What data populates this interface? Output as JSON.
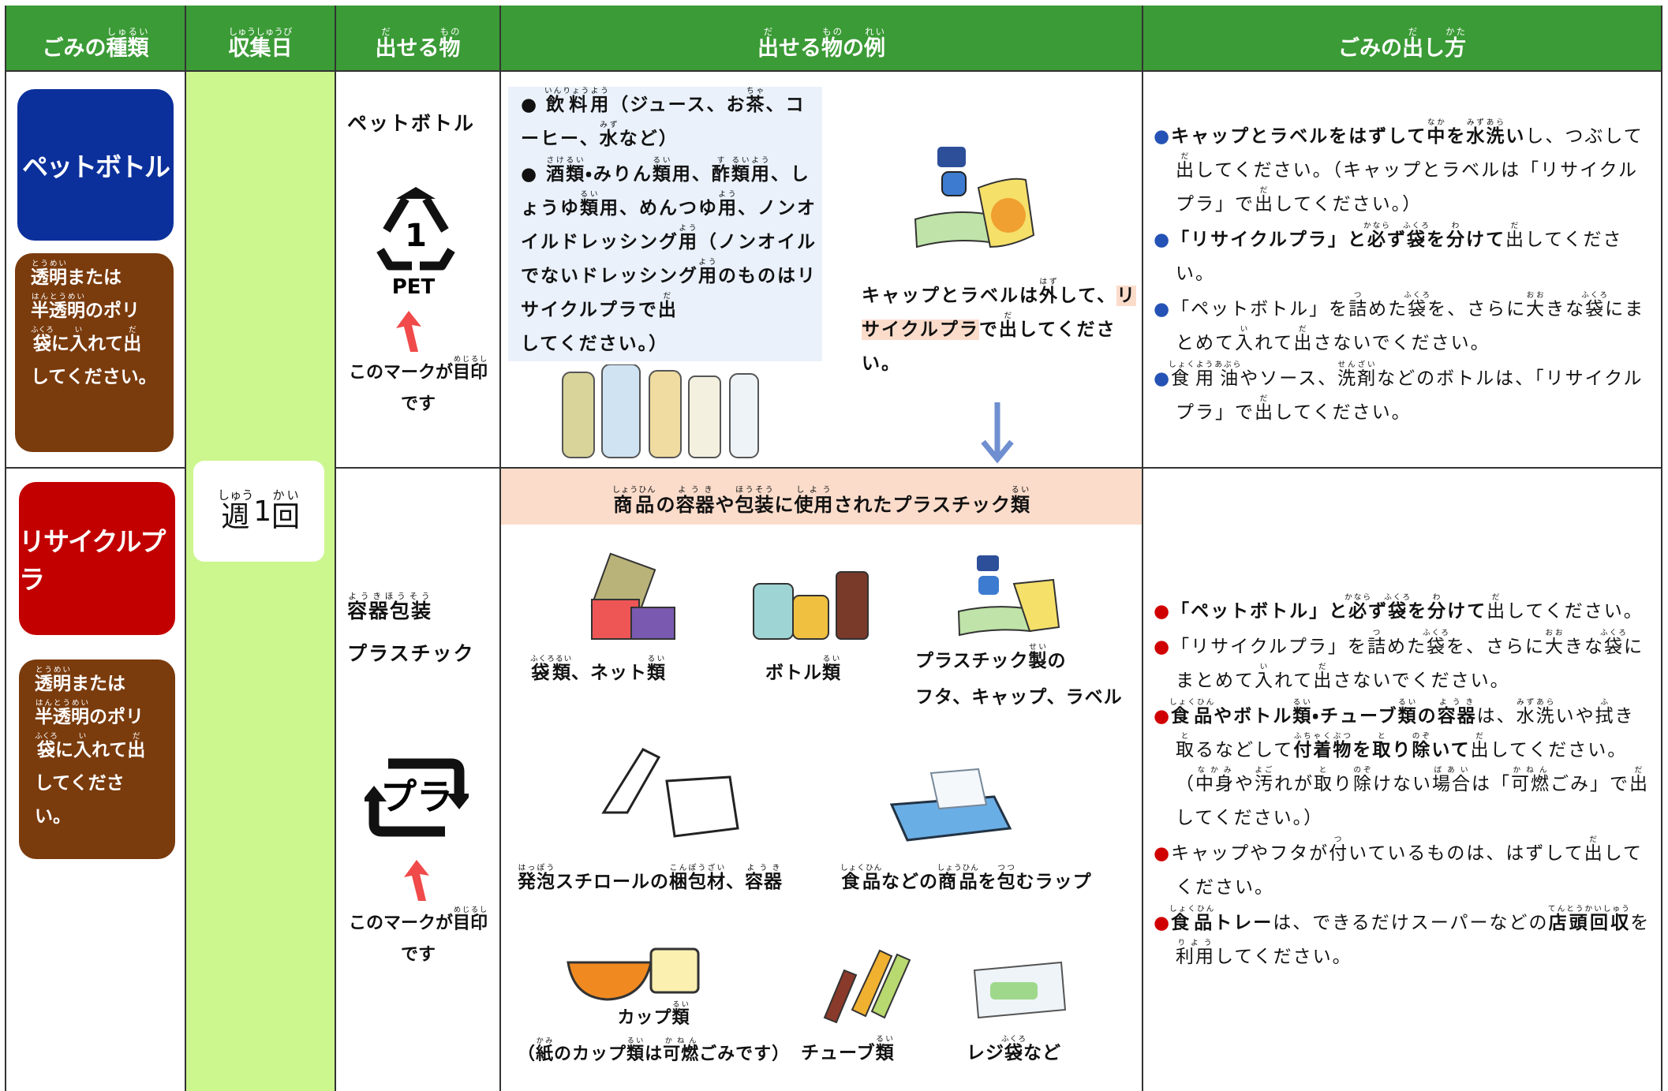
{
  "header": {
    "columns": [
      [
        "ごみの",
        {
          "t": "種類",
          "r": "しゅるい"
        }
      ],
      [
        {
          "t": "収集日",
          "r": "しゅうしゅうび"
        }
      ],
      [
        {
          "t": "出",
          "r": "だ"
        },
        "せる",
        {
          "t": "物",
          "r": "もの"
        }
      ],
      [
        {
          "t": "出",
          "r": "だ"
        },
        "せる",
        {
          "t": "物",
          "r": "もの"
        },
        "の",
        {
          "t": "例",
          "r": "れい"
        }
      ],
      [
        "ごみの",
        {
          "t": "出",
          "r": "だ"
        },
        "し",
        {
          "t": "方",
          "r": "かた"
        }
      ]
    ]
  },
  "collection_day": [
    {
      "t": "週",
      "r": "しゅう"
    },
    "1",
    {
      "t": "回",
      "r": "かい"
    }
  ],
  "rows": [
    {
      "category": "ペットボトル",
      "bag_note": [
        {
          "t": "透明",
          "r": "とうめい"
        },
        "または",
        {
          "t": "半透明",
          "r": "はんとうめい"
        },
        "のポリ",
        {
          "t": "袋",
          "r": "ふくろ"
        },
        "に",
        {
          "t": "入",
          "r": "い"
        },
        "れて",
        {
          "t": "出",
          "r": "だ"
        },
        "してください。"
      ],
      "item": [
        [
          "ペットボトル"
        ]
      ],
      "mark_number": "1",
      "mark": "PET",
      "mark_note": [
        "このマークが",
        {
          "t": "目印",
          "r": "めじるし"
        },
        "です"
      ],
      "examples": [
        [
          "● ",
          {
            "t": "飲料",
            "r": "いんりょう"
          },
          {
            "t": "用",
            "r": "よう"
          },
          "（ジュース、お",
          {
            "t": "茶",
            "r": "ちゃ"
          },
          "、コーヒー、",
          {
            "t": "水",
            "r": "みず"
          },
          "など）"
        ],
        [
          "● ",
          {
            "t": "酒類",
            "r": "さけるい"
          },
          "・みりん",
          {
            "t": "類",
            "r": "るい"
          },
          "用、",
          {
            "t": "酢",
            "r": "す"
          },
          {
            "t": "類",
            "r": "るい"
          },
          {
            "t": "用",
            "r": "よう"
          },
          "、しょうゆ",
          {
            "t": "類",
            "r": "るい"
          },
          "用、めんつゆ",
          {
            "t": "用",
            "r": "よう"
          },
          "、ノンオイルドレッシング",
          {
            "t": "用",
            "r": "よう"
          },
          "（ノンオイルでないドレッシング",
          {
            "t": "用",
            "r": "よう"
          },
          "のものはリサイクルプラで",
          {
            "t": "出",
            "r": "だ"
          },
          "してください。）"
        ]
      ],
      "caption": [
        "キャップとラベルは",
        {
          "t": "外",
          "r": "はず"
        },
        "して、",
        {
          "t": "リサイクルプラ",
          "h": true
        },
        "で",
        {
          "t": "出",
          "r": "だ"
        },
        "してください。"
      ],
      "instructions": [
        [
          {
            "t": "●",
            "c": "#2552b5"
          },
          {
            "t": "キャップとラベルをはずして",
            "b": true
          },
          {
            "t": "中",
            "r": "なか",
            "b": true
          },
          {
            "t": "を",
            "b": true
          },
          {
            "t": "水洗",
            "r": "みずあら",
            "b": true
          },
          {
            "t": "い",
            "b": true
          },
          "し、つぶして",
          {
            "t": "出",
            "r": "だ"
          },
          "してください。（キャップとラベルは「リサイクルプラ」で",
          {
            "t": "出",
            "r": "だ"
          },
          "してください。）"
        ],
        [
          {
            "t": "●",
            "c": "#2552b5"
          },
          {
            "t": "「リサイクルプラ」と",
            "b": true
          },
          {
            "t": "必",
            "r": "かなら",
            "b": true
          },
          {
            "t": "ず",
            "b": true
          },
          {
            "t": "袋",
            "r": "ふくろ",
            "b": true
          },
          {
            "t": "を",
            "b": true
          },
          {
            "t": "分",
            "r": "わ",
            "b": true
          },
          {
            "t": "けて",
            "b": true
          },
          {
            "t": "出",
            "r": "だ"
          },
          "してください。"
        ],
        [
          {
            "t": "●",
            "c": "#2552b5"
          },
          "「ペットボトル」を",
          {
            "t": "詰",
            "r": "つ"
          },
          "めた",
          {
            "t": "袋",
            "r": "ふくろ"
          },
          "を、さらに",
          {
            "t": "大",
            "r": "おお"
          },
          "きな",
          {
            "t": "袋",
            "r": "ふくろ"
          },
          "にまとめて",
          {
            "t": "入",
            "r": "い"
          },
          "れて",
          {
            "t": "出",
            "r": "だ"
          },
          "さないでください。"
        ],
        [
          {
            "t": "●",
            "c": "#2552b5"
          },
          {
            "t": "食用油",
            "r": "しょくようあぶら"
          },
          "やソース、",
          {
            "t": "洗剤",
            "r": "せんざい"
          },
          "などのボトルは、「リサイクルプラ」で",
          {
            "t": "出",
            "r": "だ"
          },
          "してください。"
        ]
      ]
    },
    {
      "category": "リサイクルプラ",
      "bag_note": [
        {
          "t": "透明",
          "r": "とうめい"
        },
        "または",
        {
          "t": "半透明",
          "r": "はんとうめい"
        },
        "のポリ",
        {
          "t": "袋",
          "r": "ふくろ"
        },
        "に",
        {
          "t": "入",
          "r": "い"
        },
        "れて",
        {
          "t": "出",
          "r": "だ"
        },
        "してください。"
      ],
      "item": [
        [
          {
            "t": "容器包装",
            "r": "ようきほうそう"
          }
        ],
        [
          "プラスチック"
        ]
      ],
      "mark": "プラ",
      "mark_note": [
        "このマークが",
        {
          "t": "目印",
          "r": "めじるし"
        },
        "です"
      ],
      "banner": [
        {
          "t": "商品",
          "r": "しょうひん"
        },
        "の",
        {
          "t": "容器",
          "r": "ようき"
        },
        "や",
        {
          "t": "包装",
          "r": "ほうそう"
        },
        "に",
        {
          "t": "使用",
          "r": "しよう"
        },
        "されたプラスチック",
        {
          "t": "類",
          "r": "るい"
        }
      ],
      "labels": [
        [
          [
            {
              "t": "袋類",
              "r": "ふくろるい"
            },
            "、ネット",
            {
              "t": "類",
              "r": "るい"
            }
          ]
        ],
        [
          [
            "ボトル",
            {
              "t": "類",
              "r": "るい"
            }
          ]
        ],
        [
          [
            "プラスチック",
            {
              "t": "製",
              "r": "せい"
            },
            "の"
          ],
          [
            "フタ、キャップ、ラベル"
          ]
        ],
        [
          [
            {
              "t": "発泡",
              "r": "はっぽう"
            },
            "スチロールの",
            {
              "t": "梱包材",
              "r": "こんぽうざい"
            },
            "、",
            {
              "t": "容器",
              "r": "ようき"
            }
          ]
        ],
        [
          [
            {
              "t": "食品",
              "r": "しょくひん"
            },
            "などの",
            {
              "t": "商品",
              "r": "しょうひん"
            },
            "を",
            {
              "t": "包",
              "r": "つつ"
            },
            "むラップ"
          ]
        ],
        [
          [
            "カップ",
            {
              "t": "類",
              "r": "るい"
            }
          ],
          [
            "（",
            {
              "t": "紙",
              "r": "かみ"
            },
            "のカップ",
            {
              "t": "類",
              "r": "るい"
            },
            "は",
            {
              "t": "可燃",
              "r": "かねん"
            },
            "ごみです）"
          ]
        ],
        [
          [
            "チューブ",
            {
              "t": "類",
              "r": "るい"
            }
          ]
        ],
        [
          [
            "レジ",
            {
              "t": "袋",
              "r": "ふくろ"
            },
            "など"
          ]
        ]
      ],
      "instructions": [
        [
          {
            "t": "●",
            "c": "#d00000"
          },
          {
            "t": "「ペットボトル」と",
            "b": true
          },
          {
            "t": "必",
            "r": "かなら",
            "b": true
          },
          {
            "t": "ず",
            "b": true
          },
          {
            "t": "袋",
            "r": "ふくろ",
            "b": true
          },
          {
            "t": "を",
            "b": true
          },
          {
            "t": "分",
            "r": "わ",
            "b": true
          },
          {
            "t": "けて",
            "b": true
          },
          {
            "t": "出",
            "r": "だ"
          },
          "してください。"
        ],
        [
          {
            "t": "●",
            "c": "#d00000"
          },
          "「リサイクルプラ」を",
          {
            "t": "詰",
            "r": "つ"
          },
          "めた",
          {
            "t": "袋",
            "r": "ふくろ"
          },
          "を、さらに",
          {
            "t": "大",
            "r": "おお"
          },
          "きな",
          {
            "t": "袋",
            "r": "ふくろ"
          },
          "にまとめて",
          {
            "t": "入",
            "r": "い"
          },
          "れて",
          {
            "t": "出",
            "r": "だ"
          },
          "さないでください。"
        ],
        [
          {
            "t": "●",
            "c": "#d00000"
          },
          {
            "t": "食品",
            "r": "しょくひん",
            "b": true
          },
          {
            "t": "やボトル",
            "b": true
          },
          {
            "t": "類",
            "r": "るい",
            "b": true
          },
          {
            "t": "・チューブ",
            "b": true
          },
          {
            "t": "類",
            "r": "るい",
            "b": true
          },
          {
            "t": "の",
            "b": true
          },
          {
            "t": "容器",
            "r": "ようき",
            "b": true
          },
          "は、",
          {
            "t": "水洗",
            "r": "みずあら"
          },
          "いや",
          {
            "t": "拭",
            "r": "ふ"
          },
          "き",
          {
            "t": "取",
            "r": "と"
          },
          "るなどして",
          {
            "t": "付着物",
            "r": "ふちゃくぶつ",
            "b": true
          },
          {
            "t": "を",
            "b": true
          },
          {
            "t": "取",
            "r": "と",
            "b": true
          },
          {
            "t": "り",
            "b": true
          },
          {
            "t": "除",
            "r": "のぞ",
            "b": true
          },
          {
            "t": "いて",
            "b": true
          },
          {
            "t": "出",
            "r": "だ"
          },
          "してください。（",
          {
            "t": "中身",
            "r": "なかみ"
          },
          "や",
          {
            "t": "汚",
            "r": "よご"
          },
          "れが",
          {
            "t": "取",
            "r": "と"
          },
          "り",
          {
            "t": "除",
            "r": "のぞ"
          },
          "けない",
          {
            "t": "場合",
            "r": "ばあい"
          },
          "は「",
          {
            "t": "可燃",
            "r": "かねん"
          },
          "ごみ」で",
          {
            "t": "出",
            "r": "だ"
          },
          "してください。）"
        ],
        [
          {
            "t": "●",
            "c": "#d00000"
          },
          "キャップやフタが",
          {
            "t": "付",
            "r": "つ"
          },
          "いているものは、はずして",
          {
            "t": "出",
            "r": "だ"
          },
          "してください。"
        ],
        [
          {
            "t": "●",
            "c": "#d00000"
          },
          {
            "t": "食品",
            "r": "しょくひん",
            "b": true
          },
          {
            "t": "トレー",
            "b": true
          },
          "は、できるだけスーパーなどの",
          {
            "t": "店頭回収",
            "r": "てんとうかいしゅう",
            "b": true
          },
          "を",
          {
            "t": "利用",
            "r": "りよう"
          },
          "してください。"
        ]
      ]
    }
  ]
}
